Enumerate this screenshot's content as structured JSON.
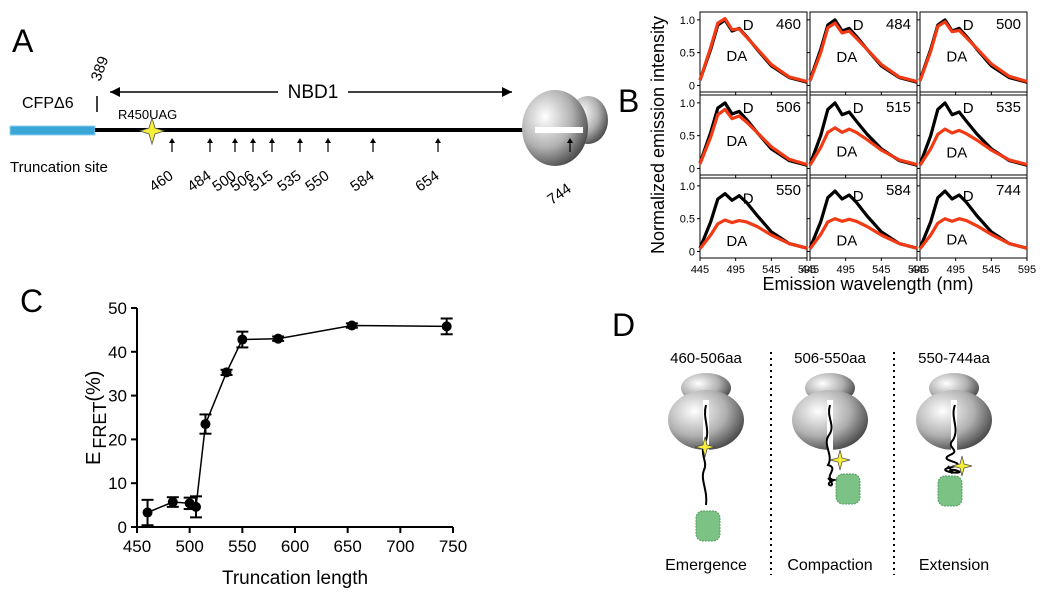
{
  "panel_a": {
    "letter": "A",
    "start": "389",
    "domain": "NBD1",
    "construct": "CFPΔ6",
    "mutation": "R450UAG",
    "site_label": "Truncation site",
    "sites": [
      "460",
      "484",
      "500",
      "506",
      "515",
      "535",
      "550",
      "584",
      "654",
      "744"
    ]
  },
  "chart_data": [
    {
      "type": "spectra_grid",
      "panel_label": "B",
      "y_label": "Normalized emission intensity",
      "x_label": "Emission wavelength (nm)",
      "x": [
        445,
        460,
        470,
        480,
        490,
        500,
        510,
        525,
        545,
        570,
        595
      ],
      "xlim": [
        445,
        595
      ],
      "ylim": [
        -0.1,
        1.12
      ],
      "xticks": [
        445,
        495,
        545,
        595
      ],
      "yticks": [
        0,
        0.5,
        {
          "value": 1,
          "label": "1.0"
        }
      ],
      "series": [
        {
          "name": "D",
          "color": "#000000"
        },
        {
          "name": "DA",
          "color": "#f23a14"
        }
      ],
      "panels": [
        {
          "title": "460",
          "values": [
            [
              0.08,
              0.55,
              0.92,
              1.0,
              0.83,
              0.87,
              0.75,
              0.55,
              0.3,
              0.12,
              0.05
            ],
            [
              0.08,
              0.58,
              0.95,
              1.02,
              0.85,
              0.86,
              0.74,
              0.56,
              0.32,
              0.13,
              0.06
            ]
          ]
        },
        {
          "title": "484",
          "values": [
            [
              0.08,
              0.55,
              0.92,
              1.0,
              0.83,
              0.87,
              0.75,
              0.55,
              0.3,
              0.12,
              0.05
            ],
            [
              0.07,
              0.5,
              0.88,
              0.95,
              0.8,
              0.83,
              0.72,
              0.55,
              0.32,
              0.13,
              0.06
            ]
          ]
        },
        {
          "title": "500",
          "values": [
            [
              0.08,
              0.55,
              0.92,
              1.0,
              0.83,
              0.87,
              0.75,
              0.55,
              0.3,
              0.12,
              0.05
            ],
            [
              0.07,
              0.52,
              0.9,
              0.97,
              0.82,
              0.84,
              0.73,
              0.56,
              0.33,
              0.14,
              0.06
            ]
          ]
        },
        {
          "title": "506",
          "values": [
            [
              0.08,
              0.55,
              0.92,
              1.0,
              0.83,
              0.87,
              0.75,
              0.55,
              0.3,
              0.12,
              0.05
            ],
            [
              0.07,
              0.48,
              0.82,
              0.9,
              0.76,
              0.8,
              0.71,
              0.55,
              0.33,
              0.14,
              0.06
            ]
          ]
        },
        {
          "title": "515",
          "values": [
            [
              0.06,
              0.5,
              0.9,
              1.0,
              0.82,
              0.86,
              0.72,
              0.52,
              0.3,
              0.12,
              0.05
            ],
            [
              0.05,
              0.32,
              0.55,
              0.62,
              0.55,
              0.6,
              0.55,
              0.44,
              0.28,
              0.13,
              0.06
            ]
          ]
        },
        {
          "title": "535",
          "values": [
            [
              0.06,
              0.5,
              0.9,
              1.0,
              0.82,
              0.86,
              0.72,
              0.52,
              0.3,
              0.12,
              0.05
            ],
            [
              0.05,
              0.3,
              0.52,
              0.6,
              0.54,
              0.58,
              0.53,
              0.43,
              0.28,
              0.13,
              0.06
            ]
          ]
        },
        {
          "title": "550",
          "values": [
            [
              0.05,
              0.45,
              0.8,
              0.88,
              0.78,
              0.85,
              0.75,
              0.55,
              0.3,
              0.12,
              0.05
            ],
            [
              0.04,
              0.25,
              0.42,
              0.48,
              0.44,
              0.47,
              0.45,
              0.38,
              0.25,
              0.12,
              0.05
            ]
          ]
        },
        {
          "title": "584",
          "values": [
            [
              0.05,
              0.45,
              0.82,
              0.92,
              0.8,
              0.86,
              0.75,
              0.54,
              0.3,
              0.12,
              0.05
            ],
            [
              0.04,
              0.26,
              0.45,
              0.5,
              0.46,
              0.49,
              0.46,
              0.38,
              0.25,
              0.12,
              0.05
            ]
          ]
        },
        {
          "title": "744",
          "values": [
            [
              0.05,
              0.45,
              0.82,
              0.92,
              0.8,
              0.86,
              0.75,
              0.54,
              0.3,
              0.12,
              0.05
            ],
            [
              0.04,
              0.25,
              0.43,
              0.5,
              0.46,
              0.5,
              0.47,
              0.39,
              0.26,
              0.12,
              0.05
            ]
          ]
        }
      ]
    },
    {
      "type": "line",
      "panel_label": "C",
      "x_label": "Truncation length",
      "y_label": "E",
      "y_label_sub": "FRET",
      "y_label_unit": "(%)",
      "x": [
        460,
        484,
        500,
        506,
        515,
        535,
        550,
        584,
        654,
        744
      ],
      "xlim": [
        450,
        750
      ],
      "ylim": [
        0,
        50
      ],
      "xticks": [
        450,
        500,
        550,
        600,
        650,
        700,
        750
      ],
      "yticks": [
        0,
        10,
        20,
        30,
        40,
        50
      ],
      "series": [
        {
          "color": "#000000",
          "values": [
            3.3,
            5.7,
            5.4,
            4.6,
            23.5,
            35.3,
            42.8,
            43,
            46,
            45.8
          ],
          "errors": [
            2.9,
            1.1,
            1.3,
            2.4,
            2.2,
            0.6,
            1.8,
            0.5,
            0.5,
            1.8
          ]
        }
      ]
    }
  ],
  "panel_d": {
    "letter": "D",
    "stages": [
      {
        "range": "460-506aa",
        "label": "Emergence"
      },
      {
        "range": "506-550aa",
        "label": "Compaction"
      },
      {
        "range": "550-744aa",
        "label": "Extension"
      }
    ]
  }
}
